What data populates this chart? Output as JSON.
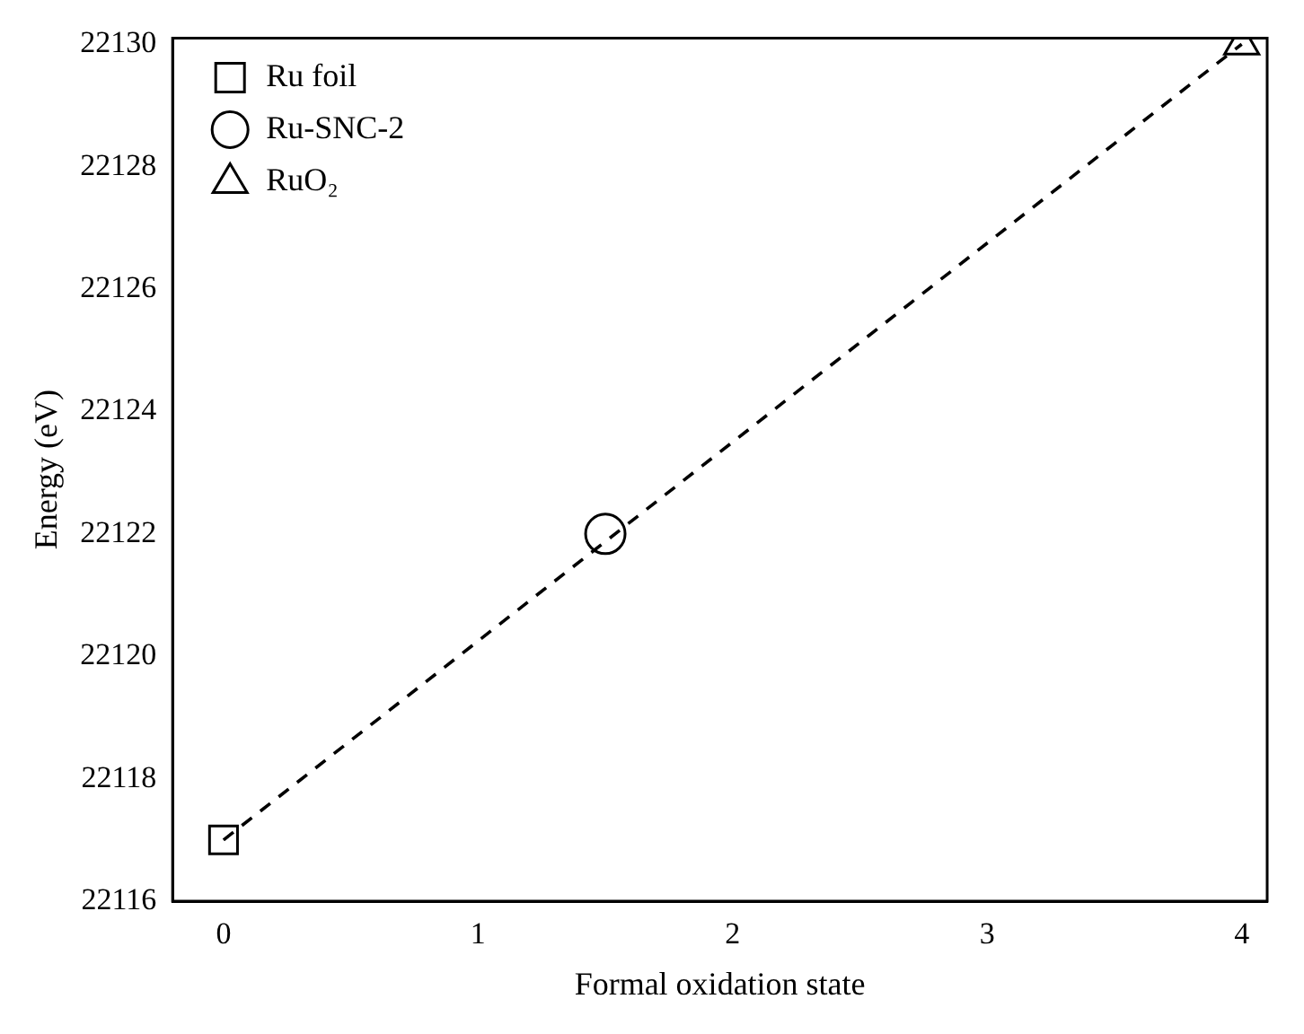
{
  "chart_data": {
    "type": "scatter",
    "xlabel": "Formal oxidation state",
    "ylabel": "Energy (eV)",
    "xlim": [
      -0.2,
      4.1
    ],
    "xticks": [
      0,
      1,
      2,
      3,
      4
    ],
    "ylim": [
      22116,
      22130.1
    ],
    "yticks": [
      22116,
      22118,
      22120,
      22122,
      22124,
      22126,
      22128,
      22130
    ],
    "grid": false,
    "legend": "top left",
    "series": [
      {
        "type": "line",
        "x": [
          0,
          4
        ],
        "values": [
          22117,
          22130
        ],
        "color": "#000000",
        "line_style": "dashed",
        "marker": "none"
      },
      {
        "name": "Ru foil",
        "x": [
          0
        ],
        "values": [
          22117
        ],
        "color": "#000000",
        "marker": "square"
      },
      {
        "name": "Ru-SNC-2",
        "x": [
          1.5
        ],
        "values": [
          22122
        ],
        "color": "#000000",
        "marker": "circle"
      },
      {
        "name": "RuO₂",
        "x": [
          4
        ],
        "values": [
          22130
        ],
        "color": "#000000",
        "marker": "triangle"
      }
    ]
  }
}
